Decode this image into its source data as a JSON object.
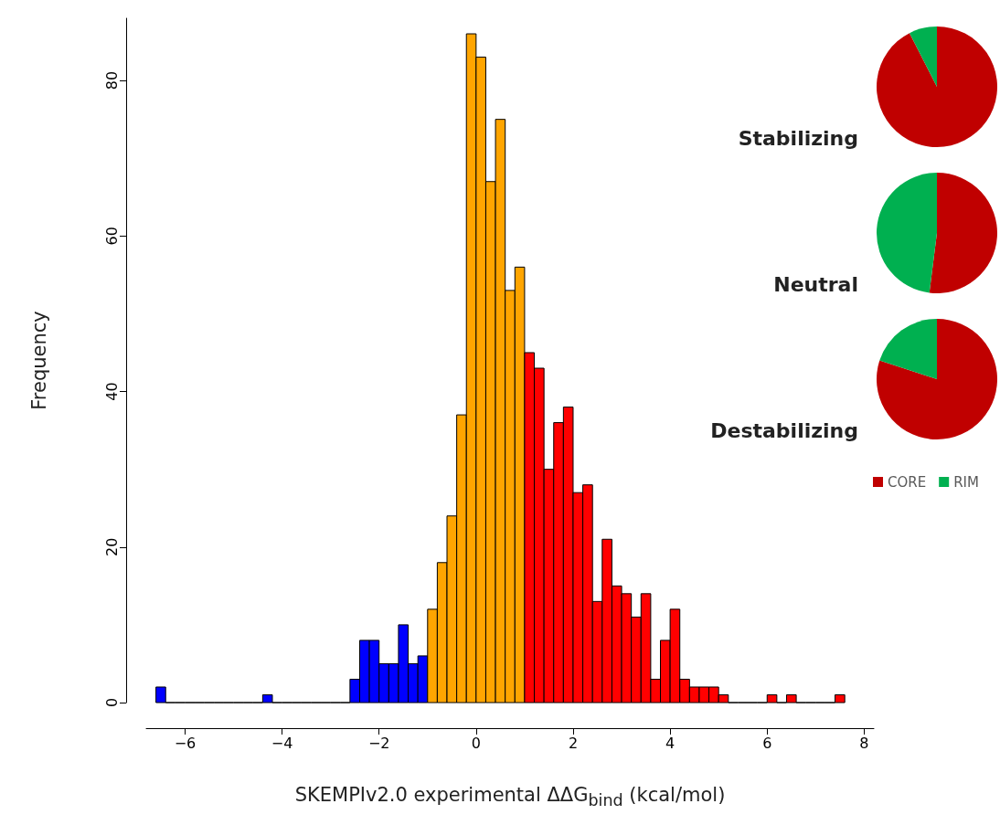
{
  "chart_data": [
    {
      "type": "histogram",
      "xlabel": "SKEMPIv2.0 experimental ΔΔG$_{bind}$ (kcal/mol)",
      "ylabel": "Frequency",
      "bins": [
        -6.6,
        -6.4,
        -6.2,
        -6.0,
        -5.8,
        -5.6,
        -5.4,
        -5.2,
        -5.0,
        -4.8,
        -4.6,
        -4.4,
        -4.2,
        -4.0,
        -3.8,
        -3.6,
        -3.4,
        -3.2,
        -3.0,
        -2.8,
        -2.6,
        -2.4,
        -2.2,
        -2.0,
        -1.8,
        -1.6,
        -1.4,
        -1.2,
        -1.0,
        -0.8,
        -0.6,
        -0.4,
        -0.2,
        0.0,
        0.2,
        0.4,
        0.6,
        0.8,
        1.0,
        1.2,
        1.4,
        1.6,
        1.8,
        2.0,
        2.2,
        2.4,
        2.6,
        2.8,
        3.0,
        3.2,
        3.4,
        3.6,
        3.8,
        4.0,
        4.2,
        4.4,
        4.6,
        4.8,
        5.0,
        5.2,
        5.4,
        5.6,
        5.8,
        6.0,
        6.2,
        6.4,
        6.6,
        6.8,
        7.0,
        7.2,
        7.4,
        7.6
      ],
      "values": [
        2,
        0,
        0,
        0,
        0,
        0,
        0,
        0,
        0,
        0,
        0,
        1,
        0,
        0,
        0,
        0,
        0,
        0,
        0,
        0,
        3,
        8,
        8,
        5,
        5,
        10,
        5,
        6,
        12,
        18,
        24,
        37,
        86,
        83,
        67,
        75,
        53,
        56,
        45,
        43,
        30,
        36,
        38,
        27,
        28,
        13,
        21,
        15,
        14,
        11,
        14,
        3,
        8,
        12,
        3,
        2,
        2,
        2,
        1,
        0,
        0,
        0,
        0,
        1,
        0,
        1,
        0,
        0,
        0,
        0,
        1
      ],
      "colors": [
        "#0000ff",
        "#000000",
        "#000000",
        "#000000",
        "#000000",
        "#000000",
        "#000000",
        "#000000",
        "#000000",
        "#000000",
        "#000000",
        "#0000ff",
        "#000000",
        "#000000",
        "#000000",
        "#000000",
        "#000000",
        "#000000",
        "#000000",
        "#000000",
        "#0000ff",
        "#0000ff",
        "#0000ff",
        "#0000ff",
        "#0000ff",
        "#0000ff",
        "#0000ff",
        "#0000ff",
        "#ffa500",
        "#ffa500",
        "#ffa500",
        "#ffa500",
        "#ffa500",
        "#ffa500",
        "#ffa500",
        "#ffa500",
        "#ffa500",
        "#ffa500",
        "#ff0000",
        "#ff0000",
        "#ff0000",
        "#ff0000",
        "#ff0000",
        "#ff0000",
        "#ff0000",
        "#ff0000",
        "#ff0000",
        "#ff0000",
        "#ff0000",
        "#ff0000",
        "#ff0000",
        "#ff0000",
        "#ff0000",
        "#ff0000",
        "#ff0000",
        "#ff0000",
        "#ff0000",
        "#ff0000",
        "#ff0000",
        "#000000",
        "#000000",
        "#000000",
        "#000000",
        "#ff0000",
        "#000000",
        "#ff0000",
        "#000000",
        "#000000",
        "#000000",
        "#000000",
        "#ff0000"
      ],
      "xlim": [
        -6.8,
        8.2
      ],
      "xticks": [
        -6,
        -4,
        -2,
        0,
        2,
        4,
        6,
        8
      ],
      "ylim": [
        0,
        88
      ],
      "yticks": [
        0,
        20,
        40,
        60,
        80
      ],
      "grid": false,
      "legend": false
    },
    {
      "type": "pie",
      "categories": [
        "CORE",
        "RIM"
      ],
      "colors": [
        "#c00000",
        "#00b050"
      ],
      "legend": "bottom",
      "series": [
        {
          "name": "Stabilizing",
          "values": [
            92.5,
            7.5
          ]
        },
        {
          "name": "Neutral",
          "values": [
            52,
            48
          ]
        },
        {
          "name": "Destabilizing",
          "values": [
            80,
            20
          ]
        }
      ]
    }
  ]
}
